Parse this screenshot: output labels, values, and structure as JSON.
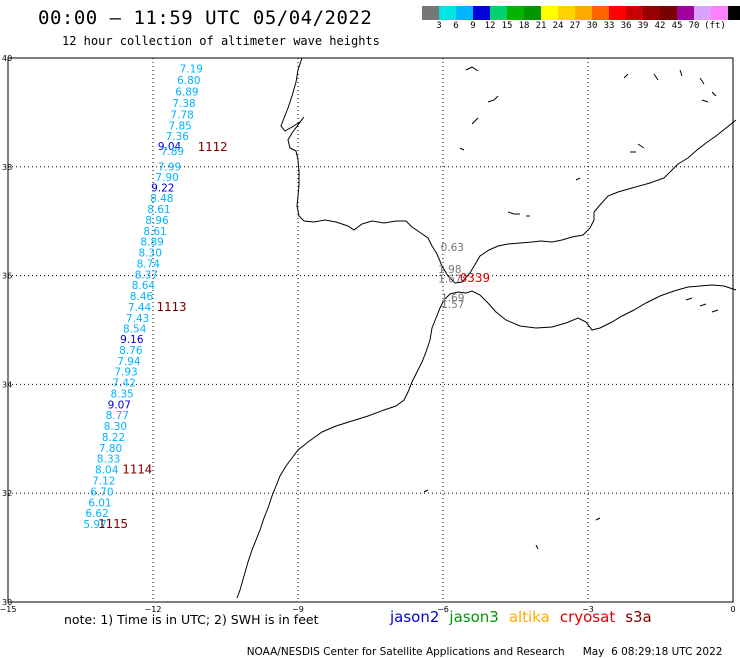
{
  "header": {
    "title": "00:00 – 11:59 UTC 05/04/2022",
    "subtitle": "12 hour collection of altimeter wave heights"
  },
  "colorbar": {
    "colors": [
      "#777777",
      "#00e6e6",
      "#00b4ff",
      "#0000dc",
      "#00d26e",
      "#00b400",
      "#009600",
      "#ffff00",
      "#ffd200",
      "#ffaa00",
      "#ff6400",
      "#ff0000",
      "#c80000",
      "#960000",
      "#780000",
      "#a000a0",
      "#dca0ff",
      "#ff80ff",
      "#000000"
    ],
    "labels": [
      "3",
      "6",
      "9",
      "12",
      "15",
      "18",
      "21",
      "24",
      "27",
      "30",
      "33",
      "36",
      "39",
      "42",
      "45",
      "70",
      "(ft)"
    ]
  },
  "map": {
    "lon_range": [
      -15,
      0
    ],
    "lat_range": [
      30,
      40
    ],
    "lon_ticks": [
      "−15",
      "−12",
      "−9",
      "−6",
      "−3",
      "0"
    ],
    "lat_ticks": [
      "40",
      "38",
      "36",
      "34",
      "32",
      "30"
    ]
  },
  "track": {
    "values": [
      {
        "v": "7.19",
        "lon": -11.45,
        "lat": 39.73,
        "c": "#00b4ff"
      },
      {
        "v": "6.80",
        "lon": -11.5,
        "lat": 39.52,
        "c": "#00b4ff"
      },
      {
        "v": "6.89",
        "lon": -11.54,
        "lat": 39.31,
        "c": "#00b4ff"
      },
      {
        "v": "7.38",
        "lon": -11.6,
        "lat": 39.1,
        "c": "#00b4ff"
      },
      {
        "v": "7.78",
        "lon": -11.64,
        "lat": 38.89,
        "c": "#00b4ff"
      },
      {
        "v": "7.85",
        "lon": -11.68,
        "lat": 38.69,
        "c": "#00b4ff"
      },
      {
        "v": "7.36",
        "lon": -11.74,
        "lat": 38.49,
        "c": "#00b4ff"
      },
      {
        "v": "9.04",
        "lon": -11.9,
        "lat": 38.31,
        "c": "#0000dc"
      },
      {
        "v": "7.89",
        "lon": -11.84,
        "lat": 38.22,
        "c": "#00b4ff"
      },
      {
        "v": "7.99",
        "lon": -11.9,
        "lat": 37.93,
        "c": "#00b4ff"
      },
      {
        "v": "7.90",
        "lon": -11.95,
        "lat": 37.74,
        "c": "#00b4ff"
      },
      {
        "v": "9.22",
        "lon": -12.04,
        "lat": 37.55,
        "c": "#0000dc"
      },
      {
        "v": "8.48",
        "lon": -12.06,
        "lat": 37.35,
        "c": "#00b4ff"
      },
      {
        "v": "8.61",
        "lon": -12.12,
        "lat": 37.15,
        "c": "#00b4ff"
      },
      {
        "v": "8.96",
        "lon": -12.16,
        "lat": 36.95,
        "c": "#00b4ff"
      },
      {
        "v": "8.61",
        "lon": -12.2,
        "lat": 36.75,
        "c": "#00b4ff"
      },
      {
        "v": "8.89",
        "lon": -12.26,
        "lat": 36.55,
        "c": "#00b4ff"
      },
      {
        "v": "8.30",
        "lon": -12.3,
        "lat": 36.35,
        "c": "#00b4ff"
      },
      {
        "v": "8.74",
        "lon": -12.34,
        "lat": 36.15,
        "c": "#00b4ff"
      },
      {
        "v": "8.37",
        "lon": -12.38,
        "lat": 35.95,
        "c": "#00b4ff"
      },
      {
        "v": "8.64",
        "lon": -12.44,
        "lat": 35.75,
        "c": "#00b4ff"
      },
      {
        "v": "8.46",
        "lon": -12.48,
        "lat": 35.55,
        "c": "#00b4ff"
      },
      {
        "v": "7.44",
        "lon": -12.52,
        "lat": 35.35,
        "c": "#00b4ff"
      },
      {
        "v": "7.43",
        "lon": -12.56,
        "lat": 35.15,
        "c": "#00b4ff"
      },
      {
        "v": "8.54",
        "lon": -12.62,
        "lat": 34.95,
        "c": "#00b4ff"
      },
      {
        "v": "9.16",
        "lon": -12.68,
        "lat": 34.76,
        "c": "#0000dc"
      },
      {
        "v": "8.76",
        "lon": -12.7,
        "lat": 34.56,
        "c": "#00b4ff"
      },
      {
        "v": "7.94",
        "lon": -12.74,
        "lat": 34.36,
        "c": "#00b4ff"
      },
      {
        "v": "7.93",
        "lon": -12.8,
        "lat": 34.16,
        "c": "#00b4ff"
      },
      {
        "v": "7.42",
        "lon": -12.84,
        "lat": 33.96,
        "c": "#00b4ff"
      },
      {
        "v": "8.35",
        "lon": -12.88,
        "lat": 33.76,
        "c": "#00b4ff"
      },
      {
        "v": "9.07",
        "lon": -12.94,
        "lat": 33.56,
        "c": "#0000dc"
      },
      {
        "v": "8.77",
        "lon": -12.98,
        "lat": 33.36,
        "c": "#00b4ff"
      },
      {
        "v": "8.30",
        "lon": -13.02,
        "lat": 33.16,
        "c": "#00b4ff"
      },
      {
        "v": "8.22",
        "lon": -13.06,
        "lat": 32.96,
        "c": "#00b4ff"
      },
      {
        "v": "7.80",
        "lon": -13.12,
        "lat": 32.76,
        "c": "#00b4ff"
      },
      {
        "v": "8.33",
        "lon": -13.16,
        "lat": 32.56,
        "c": "#00b4ff"
      },
      {
        "v": "8.04",
        "lon": -13.2,
        "lat": 32.36,
        "c": "#00b4ff"
      },
      {
        "v": "7.12",
        "lon": -13.26,
        "lat": 32.16,
        "c": "#00b4ff"
      },
      {
        "v": "6.70",
        "lon": -13.3,
        "lat": 31.96,
        "c": "#00b4ff"
      },
      {
        "v": "6.01",
        "lon": -13.34,
        "lat": 31.76,
        "c": "#00b4ff"
      },
      {
        "v": "6.62",
        "lon": -13.4,
        "lat": 31.56,
        "c": "#00b4ff"
      },
      {
        "v": "5.97",
        "lon": -13.44,
        "lat": 31.36,
        "c": "#00b4ff"
      },
      {
        "v": "0.63",
        "lon": -6.05,
        "lat": 36.45,
        "c": "#777777"
      },
      {
        "v": "1.98",
        "lon": -6.1,
        "lat": 36.05,
        "c": "#777777"
      },
      {
        "v": "1.67",
        "lon": -6.1,
        "lat": 35.87,
        "c": "#777777"
      },
      {
        "v": "1.69",
        "lon": -6.04,
        "lat": 35.52,
        "c": "#777777"
      },
      {
        "v": "1.57",
        "lon": -6.04,
        "lat": 35.4,
        "c": "#777777"
      }
    ],
    "passes": [
      {
        "label": "1112",
        "lon": -11.08,
        "lat": 38.29,
        "red": false
      },
      {
        "label": "1113",
        "lon": -11.93,
        "lat": 35.35,
        "red": false
      },
      {
        "label": "1114",
        "lon": -12.64,
        "lat": 32.36,
        "red": false
      },
      {
        "label": "1115",
        "lon": -13.14,
        "lat": 31.36,
        "red": false
      },
      {
        "label": "0339",
        "lon": -5.65,
        "lat": 35.88,
        "red": true
      }
    ]
  },
  "note": "note: 1) Time is in UTC; 2) SWH is in feet",
  "legend": [
    {
      "name": "jason2",
      "color": "#0000dc"
    },
    {
      "name": "jason3",
      "color": "#009600"
    },
    {
      "name": "altika",
      "color": "#ffaa00"
    },
    {
      "name": "cryosat",
      "color": "#e00000"
    },
    {
      "name": "s3a",
      "color": "#800000"
    }
  ],
  "footer": {
    "agency": "NOAA/NESDIS Center for Satellite Applications and Research",
    "timestamp": "May  6 08:29:18 UTC 2022"
  }
}
